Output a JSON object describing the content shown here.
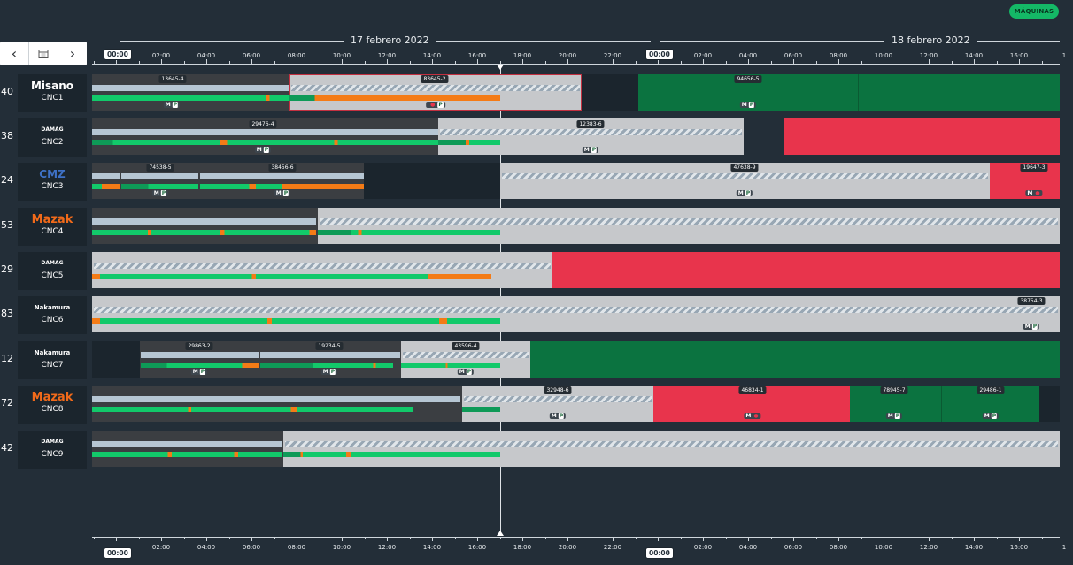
{
  "header": {
    "machines_button": "MÁQUINAS"
  },
  "timeline": {
    "dates": [
      "17 febrero 2022",
      "18 febrero 2022"
    ],
    "day_start_label": "00:00",
    "hours": [
      "02:00",
      "04:00",
      "06:00",
      "08:00",
      "10:00",
      "12:00",
      "14:00",
      "16:00",
      "18:00",
      "20:00",
      "22:00",
      "02:00",
      "04:00",
      "06:00",
      "08:00",
      "10:00",
      "12:00",
      "14:00",
      "16:00",
      "1"
    ]
  },
  "nav": {
    "prev": "‹",
    "calendar": "calendar-icon",
    "next": "›"
  },
  "colors": {
    "accent": "#14b866",
    "running": "#0b7340",
    "stopped": "#e8344c",
    "orange": "#f47b16",
    "ok": "#12c96a"
  },
  "machines": [
    {
      "num": "40",
      "brand": "Misano",
      "name": "CNC1",
      "orders": [
        "13645-4",
        "83645-2",
        "94656-5"
      ]
    },
    {
      "num": "38",
      "brand": "DAMAG",
      "name": "CNC2",
      "orders": [
        "29476-4",
        "12383-6"
      ]
    },
    {
      "num": "24",
      "brand": "CMZ",
      "name": "CNC3",
      "orders": [
        "74538-5",
        "38456-6",
        "47638-9",
        "19647-3"
      ]
    },
    {
      "num": "53",
      "brand": "Mazak",
      "name": "CNC4",
      "orders": []
    },
    {
      "num": "29",
      "brand": "DAMAG",
      "name": "CNC5",
      "orders": []
    },
    {
      "num": "83",
      "brand": "Nakamura",
      "name": "CNC6",
      "orders": [
        "38754-3"
      ]
    },
    {
      "num": "12",
      "brand": "Nakamura",
      "name": "CNC7",
      "orders": [
        "29863-2",
        "19234-5",
        "43596-4"
      ]
    },
    {
      "num": "72",
      "brand": "Mazak",
      "name": "CNC8",
      "orders": [
        "32948-6",
        "46834-1",
        "78945-7",
        "29486-1"
      ]
    },
    {
      "num": "42",
      "brand": "DAMAG",
      "name": "CNC9",
      "orders": []
    }
  ]
}
